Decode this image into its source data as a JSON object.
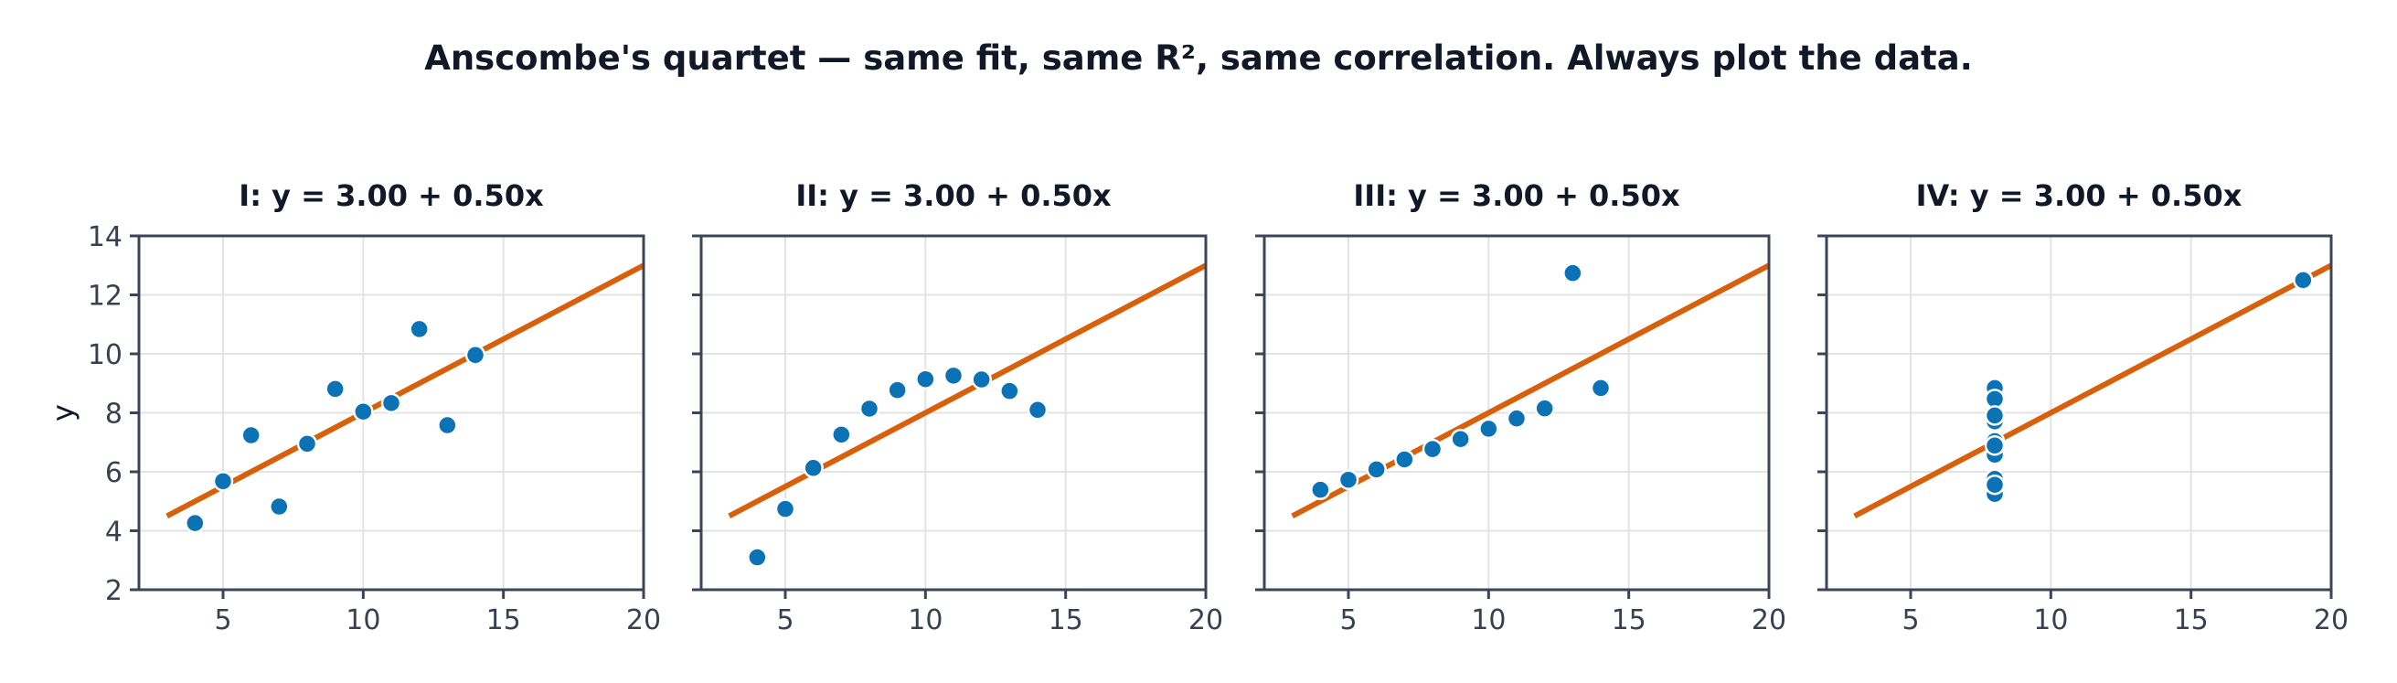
{
  "title": "Anscombe's quartet — same fit, same R², same correlation. Always plot the data.",
  "colors": {
    "points": "#0b72b5",
    "point_edge": "#ffffff",
    "fit_line": "#d9600b",
    "axes": "#3b4558",
    "grid": "#e3e3e3"
  },
  "chart_data": [
    {
      "type": "scatter",
      "title": "I:  y = 3.00 + 0.50x",
      "xlabel": "",
      "ylabel": "y",
      "xlim": [
        2,
        20
      ],
      "ylim": [
        2,
        14
      ],
      "xticks": [
        5,
        10,
        15,
        20
      ],
      "yticks": [
        2,
        4,
        6,
        8,
        10,
        12,
        14
      ],
      "grid": true,
      "x": [
        10,
        8,
        13,
        9,
        11,
        14,
        6,
        4,
        12,
        7,
        5
      ],
      "y": [
        8.04,
        6.95,
        7.58,
        8.81,
        8.33,
        9.96,
        7.24,
        4.26,
        10.84,
        4.82,
        5.68
      ],
      "fit": {
        "intercept": 3.0,
        "slope": 0.5,
        "x_range": [
          3,
          20
        ]
      }
    },
    {
      "type": "scatter",
      "title": "II:  y = 3.00 + 0.50x",
      "xlabel": "",
      "ylabel": "",
      "xlim": [
        2,
        20
      ],
      "ylim": [
        2,
        14
      ],
      "xticks": [
        5,
        10,
        15,
        20
      ],
      "yticks": [],
      "grid": true,
      "x": [
        10,
        8,
        13,
        9,
        11,
        14,
        6,
        4,
        12,
        7,
        5
      ],
      "y": [
        9.14,
        8.14,
        8.74,
        8.77,
        9.26,
        8.1,
        6.13,
        3.1,
        9.13,
        7.26,
        4.74
      ],
      "fit": {
        "intercept": 3.0,
        "slope": 0.5,
        "x_range": [
          3,
          20
        ]
      }
    },
    {
      "type": "scatter",
      "title": "III:  y = 3.00 + 0.50x",
      "xlabel": "",
      "ylabel": "",
      "xlim": [
        2,
        20
      ],
      "ylim": [
        2,
        14
      ],
      "xticks": [
        5,
        10,
        15,
        20
      ],
      "yticks": [],
      "grid": true,
      "x": [
        10,
        8,
        13,
        9,
        11,
        14,
        6,
        4,
        12,
        7,
        5
      ],
      "y": [
        7.46,
        6.77,
        12.74,
        7.11,
        7.81,
        8.84,
        6.08,
        5.39,
        8.15,
        6.42,
        5.73
      ],
      "fit": {
        "intercept": 3.0,
        "slope": 0.5,
        "x_range": [
          3,
          20
        ]
      }
    },
    {
      "type": "scatter",
      "title": "IV:  y = 3.00 + 0.50x",
      "xlabel": "",
      "ylabel": "",
      "xlim": [
        2,
        20
      ],
      "ylim": [
        2,
        14
      ],
      "xticks": [
        5,
        10,
        15,
        20
      ],
      "yticks": [],
      "grid": true,
      "x": [
        8,
        8,
        8,
        8,
        8,
        8,
        8,
        19,
        8,
        8,
        8
      ],
      "y": [
        6.58,
        5.76,
        7.71,
        8.84,
        8.47,
        7.04,
        5.25,
        12.5,
        5.56,
        7.91,
        6.89
      ],
      "fit": {
        "intercept": 3.0,
        "slope": 0.5,
        "x_range": [
          3,
          20
        ]
      }
    }
  ]
}
